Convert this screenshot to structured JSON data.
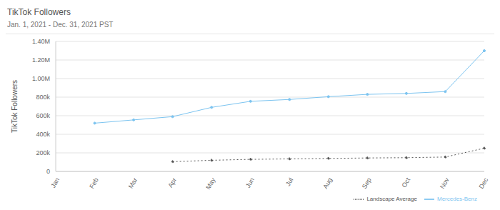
{
  "chart_data": {
    "type": "line",
    "title": "TikTok Followers",
    "subtitle": "Jan. 1, 2021 - Dec. 31, 2021 PST",
    "y_label": "TikTok Followers",
    "categories": [
      "Jan",
      "Feb",
      "Mar",
      "Apr",
      "May",
      "Jun",
      "Jul",
      "Aug",
      "Sep",
      "Oct",
      "Nov",
      "Dec"
    ],
    "series": [
      {
        "name": "Mercedes-Benz",
        "color": "#7cc4f0",
        "line_style": "solid",
        "marker": "circle",
        "values": [
          null,
          520000,
          555000,
          590000,
          690000,
          755000,
          775000,
          805000,
          830000,
          840000,
          860000,
          1300000
        ]
      },
      {
        "name": "Landscape Average",
        "color": "#555555",
        "line_style": "dotted",
        "marker": "circle",
        "values": [
          null,
          null,
          null,
          105000,
          120000,
          130000,
          135000,
          140000,
          145000,
          148000,
          155000,
          250000
        ]
      }
    ],
    "ylim": [
      0,
      1400000
    ],
    "yticks": [
      0,
      {
        "value": 200000,
        "label": "200k"
      },
      {
        "value": 400000,
        "label": "400k"
      },
      {
        "value": 600000,
        "label": "600k"
      },
      {
        "value": 800000,
        "label": "800k"
      },
      {
        "value": 1000000,
        "label": "1.00M"
      },
      {
        "value": 1200000,
        "label": "1.20M"
      },
      {
        "value": 1400000,
        "label": "1.40M"
      }
    ],
    "grid": true,
    "legend": "bottom-right"
  }
}
